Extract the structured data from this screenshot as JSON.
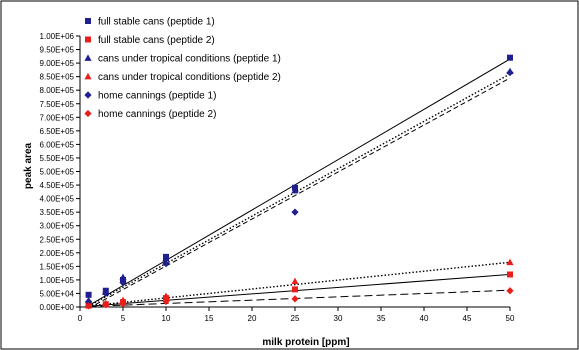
{
  "chart_data": {
    "type": "scatter",
    "xlabel": "milk protein [ppm]",
    "ylabel": "peak area",
    "xlim": [
      0,
      50
    ],
    "ylim": [
      0,
      1000000
    ],
    "x_ticks": [
      0,
      5,
      10,
      15,
      20,
      25,
      30,
      35,
      40,
      45,
      50
    ],
    "y_ticks": [
      0,
      50000,
      100000,
      150000,
      200000,
      250000,
      300000,
      350000,
      400000,
      450000,
      500000,
      550000,
      600000,
      650000,
      700000,
      750000,
      800000,
      850000,
      900000,
      950000,
      1000000
    ],
    "y_tick_labels": [
      "0.00E+00",
      "5.00E+04",
      "1.00E+05",
      "1.50E+05",
      "2.00E+05",
      "2.50E+05",
      "3.00E+05",
      "3.50E+05",
      "4.00E+05",
      "4.50E+05",
      "5.00E+05",
      "5.50E+05",
      "6.00E+05",
      "6.50E+05",
      "7.00E+05",
      "7.50E+05",
      "8.00E+05",
      "8.50E+05",
      "9.00E+05",
      "9.50E+05",
      "1.00E+06"
    ],
    "grid": false,
    "legend_position": "top-left",
    "series": [
      {
        "name": "full stable cans (peptide 1)",
        "marker": "square",
        "color": "#1f1f8f",
        "x": [
          1,
          3,
          5,
          10,
          25,
          50
        ],
        "y": [
          45000,
          60000,
          100000,
          185000,
          440000,
          920000
        ],
        "trend": {
          "y0": 5000,
          "y1": 915000,
          "style": "solid"
        }
      },
      {
        "name": "full stable cans (peptide 2)",
        "marker": "square",
        "color": "#e8201c",
        "x": [
          1,
          3,
          5,
          10,
          25,
          50
        ],
        "y": [
          5000,
          10000,
          18000,
          33000,
          65000,
          120000
        ],
        "trend": {
          "y0": 3000,
          "y1": 120000,
          "style": "solid"
        }
      },
      {
        "name": "cans under tropical conditions (peptide 1)",
        "marker": "triangle",
        "color": "#1f1f8f",
        "x": [
          1,
          3,
          5,
          10,
          25,
          50
        ],
        "y": [
          25000,
          55000,
          110000,
          180000,
          430000,
          870000
        ],
        "trend": {
          "y0": 3000,
          "y1": 860000,
          "style": "dotted"
        }
      },
      {
        "name": "cans under tropical conditions (peptide 2)",
        "marker": "triangle",
        "color": "#e8201c",
        "x": [
          1,
          3,
          5,
          10,
          25,
          50
        ],
        "y": [
          8000,
          14000,
          25000,
          40000,
          95000,
          165000
        ],
        "trend": {
          "y0": 4000,
          "y1": 165000,
          "style": "dotted"
        }
      },
      {
        "name": "home cannings (peptide 1)",
        "marker": "diamond",
        "color": "#1f1f8f",
        "x": [
          1,
          3,
          5,
          10,
          25,
          50
        ],
        "y": [
          20000,
          50000,
          90000,
          160000,
          350000,
          865000
        ],
        "trend": {
          "y0": -5000,
          "y1": 845000,
          "style": "dashed"
        }
      },
      {
        "name": "home cannings (peptide 2)",
        "marker": "diamond",
        "color": "#e8201c",
        "x": [
          1,
          3,
          5,
          10,
          25,
          50
        ],
        "y": [
          4000,
          8000,
          12000,
          20000,
          30000,
          60000
        ],
        "trend": {
          "y0": 2000,
          "y1": 62000,
          "style": "longdash"
        }
      }
    ]
  }
}
